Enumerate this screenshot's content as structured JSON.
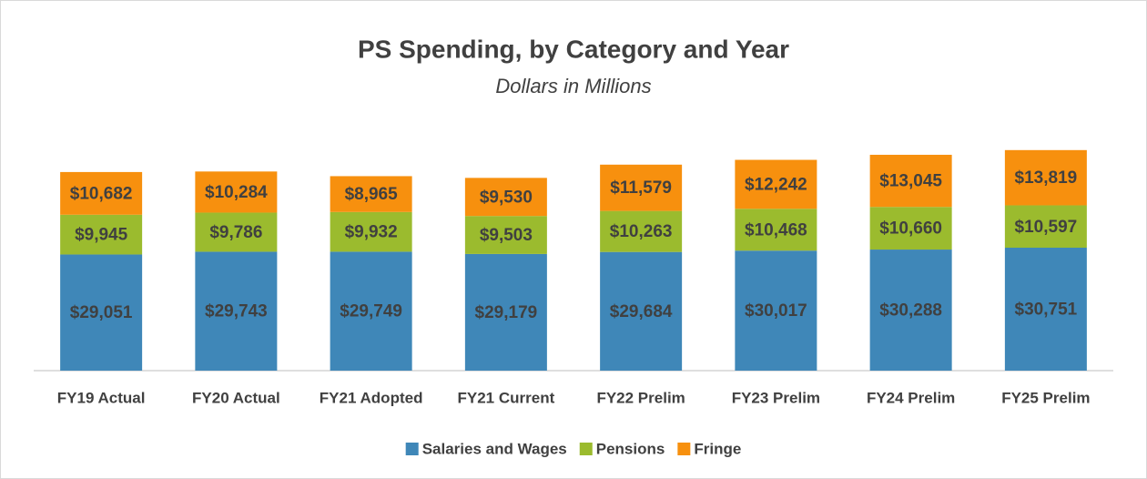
{
  "chart_data": {
    "type": "stacked_bar",
    "title": "PS Spending, by Category and Year",
    "subtitle": "Dollars in Millions",
    "categories": [
      "FY19 Actual",
      "FY20 Actual",
      "FY21 Adopted",
      "FY21 Current",
      "FY22 Prelim",
      "FY23 Prelim",
      "FY24 Prelim",
      "FY25 Prelim"
    ],
    "series": [
      {
        "name": "Salaries and Wages",
        "color": "#3f87b8",
        "values": [
          29051,
          29743,
          29749,
          29179,
          29684,
          30017,
          30288,
          30751
        ],
        "value_labels": [
          "$29,051",
          "$29,743",
          "$29,749",
          "$29,179",
          "$29,684",
          "$30,017",
          "$30,288",
          "$30,751"
        ]
      },
      {
        "name": "Pensions",
        "color": "#9bbb2e",
        "values": [
          9945,
          9786,
          9932,
          9503,
          10263,
          10468,
          10660,
          10597
        ],
        "value_labels": [
          "$9,945",
          "$9,786",
          "$9,932",
          "$9,503",
          "$10,263",
          "$10,468",
          "$10,660",
          "$10,597"
        ]
      },
      {
        "name": "Fringe",
        "color": "#f7900e",
        "values": [
          10682,
          10284,
          8965,
          9530,
          11579,
          12242,
          13045,
          13819
        ],
        "value_labels": [
          "$10,682",
          "$10,284",
          "$8,965",
          "$9,530",
          "$11,579",
          "$12,242",
          "$13,045",
          "$13,819"
        ]
      }
    ],
    "legend": "bottom"
  }
}
